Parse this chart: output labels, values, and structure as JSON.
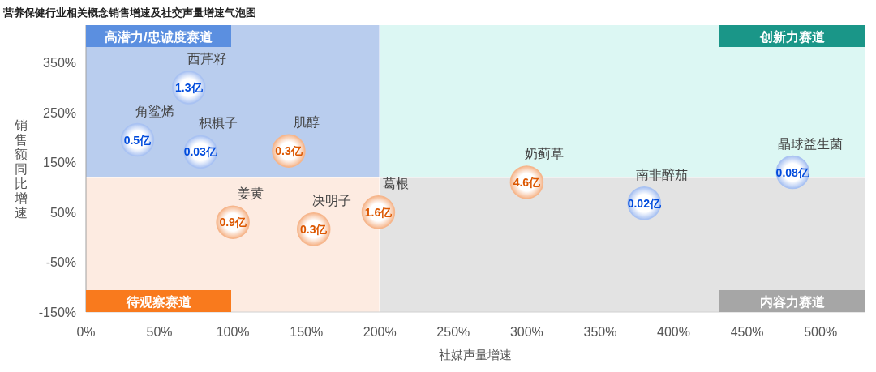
{
  "chart_data": {
    "type": "bubble",
    "title": "营养保健行业相关概念销售增速及社交声量增速气泡图",
    "xlabel": "社媒声量增速",
    "ylabel": "销售额同比增速",
    "xlim": [
      0,
      530
    ],
    "xticks": [
      {
        "value": 0,
        "label": "0%"
      },
      {
        "value": 50,
        "label": "50%"
      },
      {
        "value": 100,
        "label": "100%"
      },
      {
        "value": 150,
        "label": "150%"
      },
      {
        "value": 200,
        "label": "200%"
      },
      {
        "value": 250,
        "label": "250%"
      },
      {
        "value": 300,
        "label": "300%"
      },
      {
        "value": 350,
        "label": "350%"
      },
      {
        "value": 400,
        "label": "400%"
      },
      {
        "value": 450,
        "label": "450%"
      },
      {
        "value": 500,
        "label": "500%"
      }
    ],
    "ylim": [
      -150,
      425
    ],
    "yticks": [
      {
        "value": -150,
        "label": "-150%"
      },
      {
        "value": -50,
        "label": "-50%"
      },
      {
        "value": 50,
        "label": "50%"
      },
      {
        "value": 150,
        "label": "150%"
      },
      {
        "value": 250,
        "label": "250%"
      },
      {
        "value": 350,
        "label": "350%"
      }
    ],
    "series": [
      {
        "name": "肌醇",
        "color": "#f6b68c",
        "x": [
          138
        ],
        "values": [
          173
        ],
        "sizes": [
          1
        ]
      },
      {
        "name": "姜黄",
        "color": "#f6b68c",
        "x": [
          100
        ],
        "values": [
          30
        ],
        "sizes": [
          1
        ]
      },
      {
        "name": "决明子",
        "color": "#f6b68c",
        "x": [
          155
        ],
        "values": [
          16
        ],
        "sizes": [
          1
        ]
      },
      {
        "name": "葛根",
        "color": "#f6b68c",
        "x": [
          199
        ],
        "values": [
          50
        ],
        "sizes": [
          1
        ]
      },
      {
        "name": "奶蓟草",
        "color": "#f6b68c",
        "x": [
          300
        ],
        "values": [
          110
        ],
        "sizes": [
          1
        ]
      },
      {
        "name": "西芹籽",
        "color": "#a9c2f2",
        "x": [
          70
        ],
        "values": [
          300
        ],
        "sizes": [
          1
        ]
      },
      {
        "name": "角鲨烯",
        "color": "#a9c2f2",
        "x": [
          35
        ],
        "values": [
          195
        ],
        "sizes": [
          1
        ]
      },
      {
        "name": "枳椇子",
        "color": "#a9c2f2",
        "x": [
          78
        ],
        "values": [
          171
        ],
        "sizes": [
          1
        ]
      },
      {
        "name": "南非醉茄",
        "color": "#a9c2f2",
        "x": [
          380
        ],
        "values": [
          68
        ],
        "sizes": [
          1
        ]
      },
      {
        "name": "晶球益生菌",
        "color": "#a9c2f2",
        "x": [
          481
        ],
        "values": [
          130
        ],
        "sizes": [
          1
        ]
      }
    ],
    "ref_lines": [
      {
        "axis": "x",
        "value": 200,
        "color": "#ffffff"
      },
      {
        "axis": "y",
        "value": 120,
        "color": "#ffffff"
      }
    ],
    "annotations": [
      "高潜力/忠诚度赛道",
      "创新力赛道",
      "待观察赛道",
      "内容力赛道",
      {
        "text": "0.3亿",
        "x": 138,
        "y": 173
      },
      {
        "text": "0.9亿",
        "x": 100,
        "y": 30
      },
      {
        "text": "0.3亿",
        "x": 155,
        "y": 16
      },
      {
        "text": "1.6亿",
        "x": 199,
        "y": 50
      },
      {
        "text": "4.6亿",
        "x": 300,
        "y": 110
      },
      {
        "text": "1.3亿",
        "x": 70,
        "y": 300
      },
      {
        "text": "0.5亿",
        "x": 35,
        "y": 195
      },
      {
        "text": "0.03亿",
        "x": 78,
        "y": 171
      },
      {
        "text": "0.02亿",
        "x": 380,
        "y": 68
      },
      {
        "text": "0.08亿",
        "x": 481,
        "y": 130
      }
    ]
  }
}
